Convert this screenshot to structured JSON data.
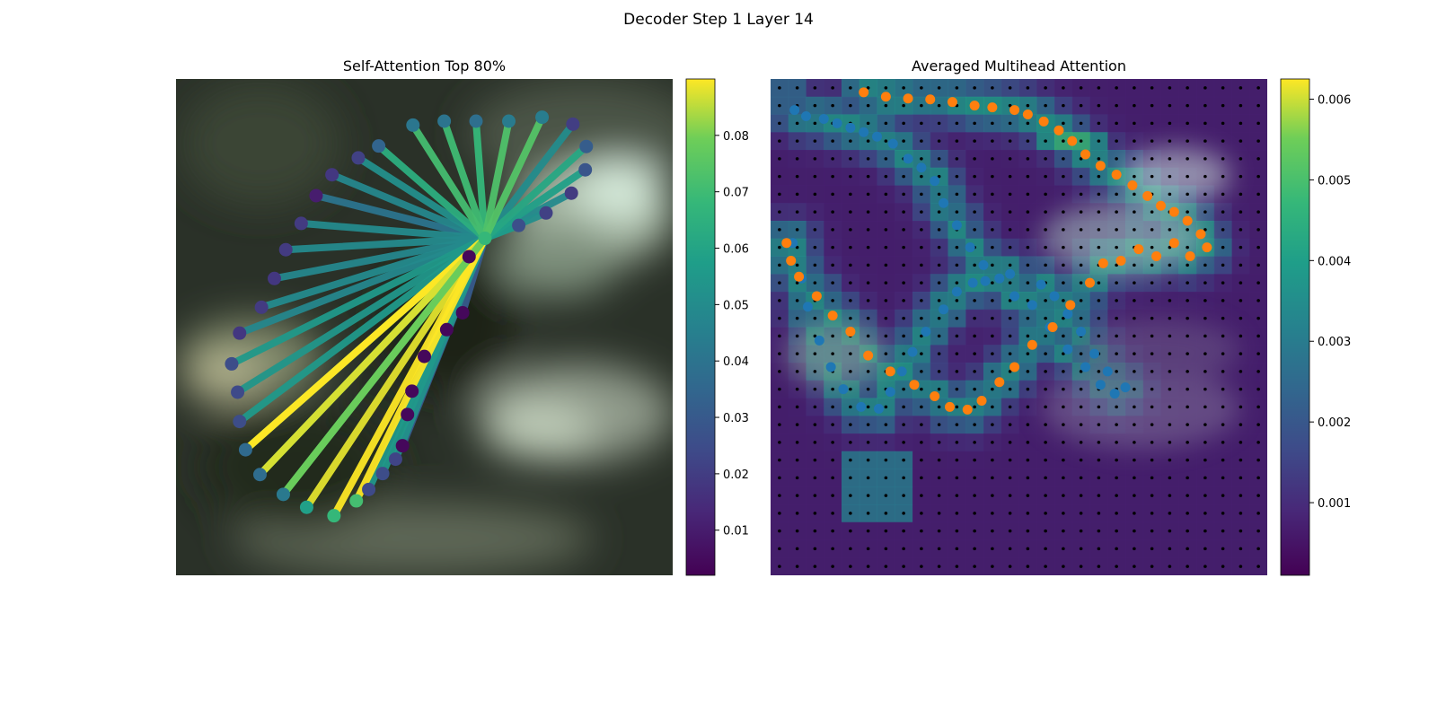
{
  "suptitle": "Decoder Step 1 Layer 14",
  "panels": [
    {
      "title": "Self-Attention Top 80%",
      "colorbar_ticks": [
        "0.01",
        "0.02",
        "0.03",
        "0.04",
        "0.05",
        "0.06",
        "0.07",
        "0.08"
      ]
    },
    {
      "title": "Averaged Multihead Attention",
      "colorbar_ticks": [
        "0.001",
        "0.002",
        "0.003",
        "0.004",
        "0.005",
        "0.006"
      ]
    }
  ],
  "colors": {
    "background": "#ffffff",
    "series_a": "#1f77b4",
    "series_b": "#ff7f0e",
    "grid_dot": "#000000"
  },
  "chart_data": [
    {
      "type": "scatter",
      "title": "Self-Attention Top 80%",
      "colormap": "viridis",
      "colorbar_range": [
        0.002,
        0.09
      ],
      "colorbar_ticks": [
        0.01,
        0.02,
        0.03,
        0.04,
        0.05,
        0.06,
        0.07,
        0.08
      ],
      "grid": false,
      "x_range": [
        0,
        100
      ],
      "y_range": [
        0,
        100
      ],
      "query_point": {
        "x": 62.2,
        "y": 67.9
      },
      "points": [
        {
          "x": 47.7,
          "y": 90.7,
          "w": 0.041
        },
        {
          "x": 54.0,
          "y": 91.5,
          "w": 0.04
        },
        {
          "x": 60.4,
          "y": 91.5,
          "w": 0.038
        },
        {
          "x": 67.0,
          "y": 91.5,
          "w": 0.043
        },
        {
          "x": 73.7,
          "y": 92.3,
          "w": 0.044
        },
        {
          "x": 79.9,
          "y": 90.9,
          "w": 0.02
        },
        {
          "x": 82.6,
          "y": 86.4,
          "w": 0.031
        },
        {
          "x": 82.4,
          "y": 81.7,
          "w": 0.028
        },
        {
          "x": 79.6,
          "y": 77.0,
          "w": 0.019
        },
        {
          "x": 74.5,
          "y": 73.0,
          "w": 0.021
        },
        {
          "x": 69.0,
          "y": 70.5,
          "w": 0.026
        },
        {
          "x": 40.8,
          "y": 86.5,
          "w": 0.034
        },
        {
          "x": 36.7,
          "y": 84.1,
          "w": 0.021
        },
        {
          "x": 31.4,
          "y": 80.7,
          "w": 0.018
        },
        {
          "x": 28.2,
          "y": 76.5,
          "w": 0.01
        },
        {
          "x": 25.2,
          "y": 70.9,
          "w": 0.019
        },
        {
          "x": 22.1,
          "y": 65.6,
          "w": 0.019
        },
        {
          "x": 19.8,
          "y": 59.8,
          "w": 0.018
        },
        {
          "x": 17.2,
          "y": 54.0,
          "w": 0.019
        },
        {
          "x": 12.8,
          "y": 48.8,
          "w": 0.018
        },
        {
          "x": 11.2,
          "y": 42.6,
          "w": 0.025
        },
        {
          "x": 12.4,
          "y": 36.9,
          "w": 0.024
        },
        {
          "x": 12.8,
          "y": 31.0,
          "w": 0.025
        },
        {
          "x": 14.0,
          "y": 25.3,
          "w": 0.036
        },
        {
          "x": 16.9,
          "y": 20.3,
          "w": 0.037
        },
        {
          "x": 21.6,
          "y": 16.3,
          "w": 0.042
        },
        {
          "x": 26.3,
          "y": 13.7,
          "w": 0.058
        },
        {
          "x": 31.8,
          "y": 12.0,
          "w": 0.068
        },
        {
          "x": 36.3,
          "y": 15.0,
          "w": 0.071
        },
        {
          "x": 38.8,
          "y": 17.3,
          "w": 0.024
        },
        {
          "x": 41.6,
          "y": 20.5,
          "w": 0.025
        },
        {
          "x": 44.2,
          "y": 23.4,
          "w": 0.022
        },
        {
          "x": 45.6,
          "y": 26.1,
          "w": 0.004
        },
        {
          "x": 46.6,
          "y": 32.4,
          "w": 0.004
        },
        {
          "x": 47.5,
          "y": 37.1,
          "w": 0.004
        },
        {
          "x": 50.0,
          "y": 44.1,
          "w": 0.004
        },
        {
          "x": 54.5,
          "y": 49.5,
          "w": 0.004
        },
        {
          "x": 57.7,
          "y": 52.9,
          "w": 0.004
        },
        {
          "x": 59.0,
          "y": 64.2,
          "w": 0.004
        }
      ],
      "line_alpha_top": [
        0.09,
        0.087,
        0.078
      ]
    },
    {
      "type": "heatmap",
      "title": "Averaged Multihead Attention",
      "colormap": "viridis",
      "colorbar_range": [
        0.0001,
        0.00625
      ],
      "colorbar_ticks": [
        0.001,
        0.002,
        0.003,
        0.004,
        0.005,
        0.006
      ],
      "grid_cells": [
        28,
        28
      ],
      "grid": false,
      "overlay_series": [
        {
          "color": "#1f77b4",
          "points": [
            [
              2.5,
              18.5
            ],
            [
              3.5,
              22.5
            ],
            [
              4.2,
              25.7
            ],
            [
              5.5,
              29.5
            ],
            [
              6.8,
              32.5
            ],
            [
              8.2,
              35.0
            ],
            [
              10.2,
              37.0
            ],
            [
              12.2,
              37.2
            ],
            [
              13.5,
              35.3
            ],
            [
              14.8,
              33.0
            ],
            [
              16.0,
              30.8
            ],
            [
              17.5,
              28.5
            ],
            [
              19.5,
              26.0
            ],
            [
              21.0,
              24.0
            ],
            [
              22.8,
              23.0
            ],
            [
              24.2,
              22.8
            ],
            [
              25.8,
              22.5
            ],
            [
              27.5,
              24.5
            ],
            [
              29.5,
              25.5
            ],
            [
              31.5,
              28.0
            ],
            [
              33.5,
              30.5
            ],
            [
              35.5,
              32.5
            ],
            [
              37.2,
              34.5
            ],
            [
              38.8,
              35.5
            ],
            [
              40.0,
              34.8
            ],
            [
              38.0,
              33.0
            ],
            [
              36.5,
              31.0
            ],
            [
              35.0,
              28.5
            ],
            [
              33.5,
              26.5
            ],
            [
              32.0,
              24.5
            ],
            [
              30.5,
              23.2
            ],
            [
              27.0,
              22.0
            ],
            [
              24.0,
              21.0
            ],
            [
              22.5,
              19.0
            ],
            [
              21.0,
              16.5
            ],
            [
              19.5,
              14.0
            ],
            [
              18.5,
              11.5
            ],
            [
              17.0,
              10.0
            ],
            [
              15.5,
              9.0
            ],
            [
              13.8,
              7.3
            ],
            [
              12.0,
              6.5
            ],
            [
              10.5,
              6.0
            ],
            [
              9.0,
              5.5
            ],
            [
              7.5,
              5.0
            ],
            [
              6.0,
              4.5
            ],
            [
              4.0,
              4.2
            ],
            [
              2.7,
              3.5
            ]
          ]
        },
        {
          "color": "#ff7f0e",
          "points": [
            [
              1.8,
              18.5
            ],
            [
              2.3,
              20.5
            ],
            [
              3.2,
              22.3
            ],
            [
              5.2,
              24.5
            ],
            [
              7.0,
              26.7
            ],
            [
              9.0,
              28.5
            ],
            [
              11.0,
              31.2
            ],
            [
              13.5,
              33.0
            ],
            [
              16.2,
              34.5
            ],
            [
              18.5,
              35.8
            ],
            [
              20.2,
              37.0
            ],
            [
              22.2,
              37.3
            ],
            [
              23.8,
              36.3
            ],
            [
              25.8,
              34.2
            ],
            [
              27.5,
              32.5
            ],
            [
              29.5,
              30.0
            ],
            [
              31.8,
              28.0
            ],
            [
              33.8,
              25.5
            ],
            [
              36.0,
              23.0
            ],
            [
              37.5,
              20.8
            ],
            [
              39.5,
              20.5
            ],
            [
              41.5,
              19.2
            ],
            [
              43.5,
              20.0
            ],
            [
              45.5,
              18.5
            ],
            [
              47.3,
              20.0
            ],
            [
              49.2,
              19.0
            ],
            [
              48.5,
              17.5
            ],
            [
              47.0,
              16.0
            ],
            [
              45.5,
              15.0
            ],
            [
              44.0,
              14.3
            ],
            [
              42.5,
              13.2
            ],
            [
              40.8,
              12.0
            ],
            [
              39.0,
              10.8
            ],
            [
              37.2,
              9.8
            ],
            [
              35.5,
              8.5
            ],
            [
              34.0,
              7.0
            ],
            [
              32.5,
              5.8
            ],
            [
              30.8,
              4.8
            ],
            [
              29.0,
              4.0
            ],
            [
              27.5,
              3.5
            ],
            [
              25.0,
              3.2
            ],
            [
              23.0,
              3.0
            ],
            [
              20.5,
              2.6
            ],
            [
              18.0,
              2.3
            ],
            [
              15.5,
              2.2
            ],
            [
              13.0,
              2.0
            ],
            [
              10.5,
              1.5
            ]
          ]
        }
      ]
    }
  ]
}
